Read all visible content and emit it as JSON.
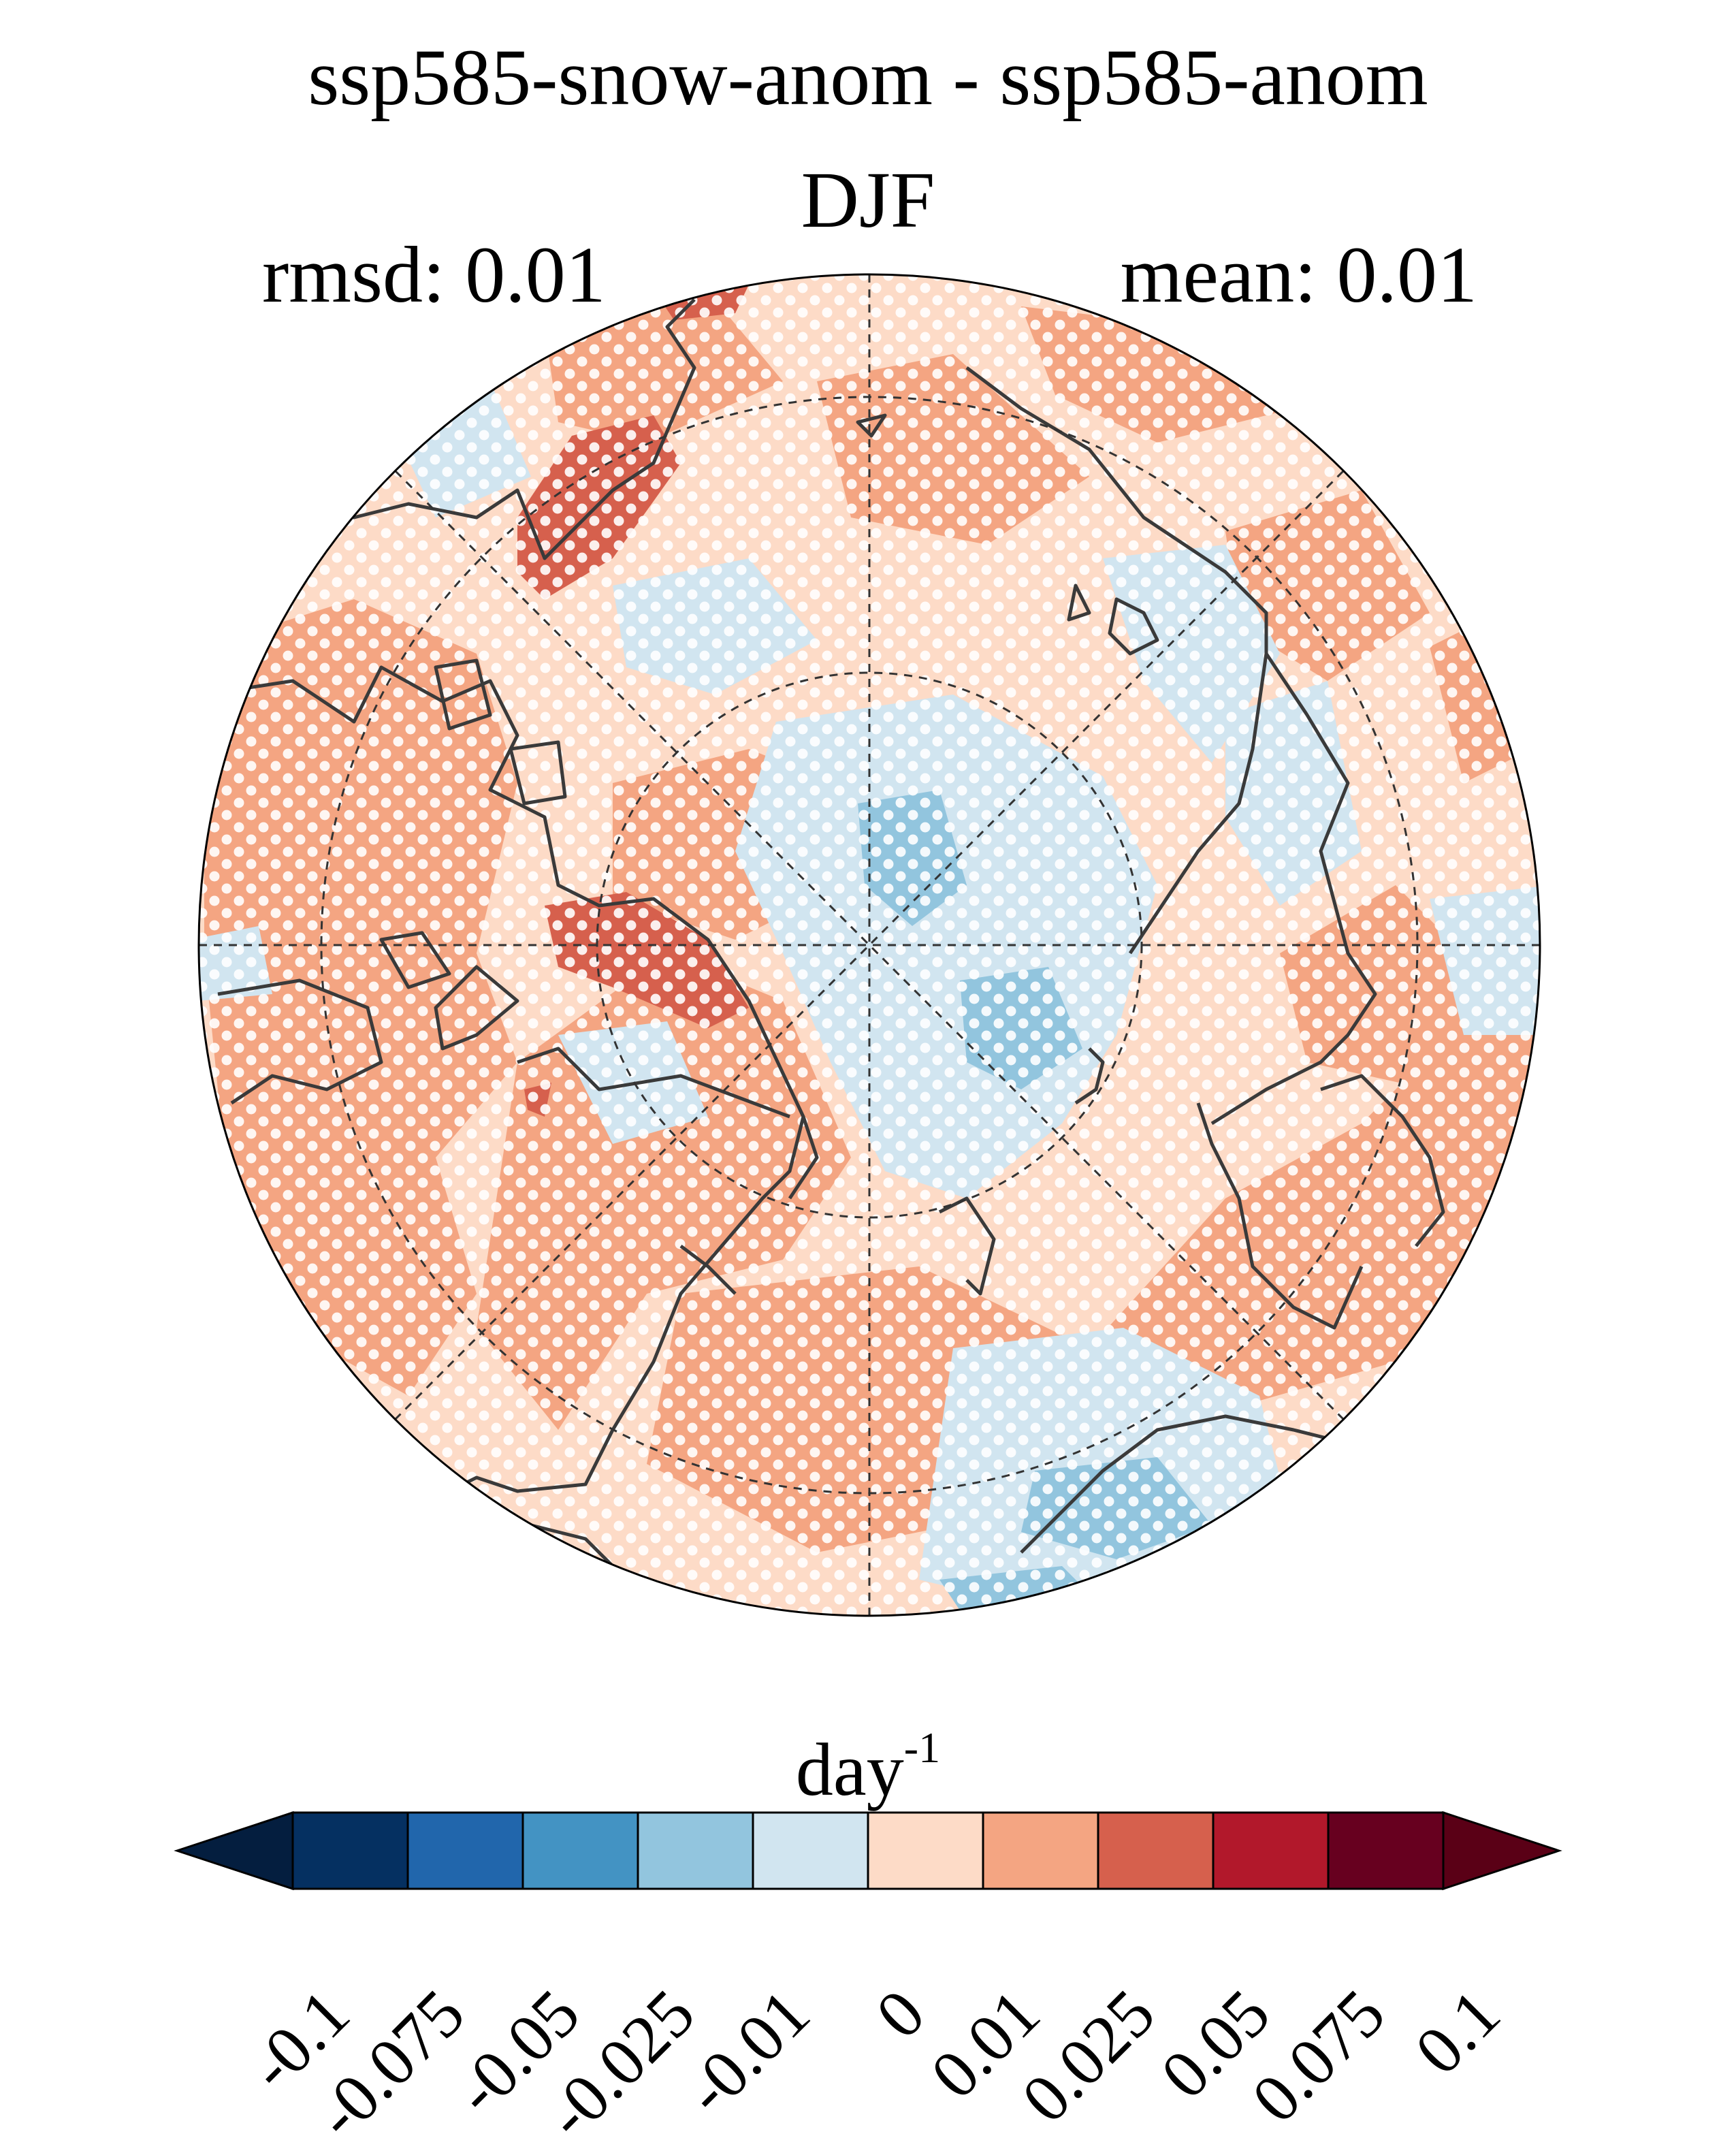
{
  "title": "ssp585-snow-anom - ssp585-anom",
  "season": "DJF",
  "rmsd_text": "rmsd: 0.01",
  "mean_text": "mean: 0.01",
  "colorbar": {
    "units_base": "day",
    "units_exp": "-1",
    "tick_labels": [
      "-0.1",
      "-0.075",
      "-0.05",
      "-0.025",
      "-0.01",
      "0",
      "0.01",
      "0.025",
      "0.05",
      "0.075",
      "0.1"
    ],
    "bins": [
      {
        "from": "-0.1",
        "to": "-0.075",
        "color": "#053061"
      },
      {
        "from": "-0.075",
        "to": "-0.05",
        "color": "#2166ac"
      },
      {
        "from": "-0.05",
        "to": "-0.025",
        "color": "#4393c3"
      },
      {
        "from": "-0.025",
        "to": "-0.01",
        "color": "#92c5de"
      },
      {
        "from": "-0.01",
        "to": "0",
        "color": "#d1e5f0"
      },
      {
        "from": "0",
        "to": "0.01",
        "color": "#fddbc7"
      },
      {
        "from": "0.01",
        "to": "0.025",
        "color": "#f4a582"
      },
      {
        "from": "0.025",
        "to": "0.05",
        "color": "#d6604d"
      },
      {
        "from": "0.05",
        "to": "0.075",
        "color": "#b2182b"
      },
      {
        "from": "0.075",
        "to": "0.1",
        "color": "#67001f"
      }
    ],
    "under_color": "#041e3f",
    "over_color": "#5a0016",
    "extend": "both"
  },
  "map": {
    "projection": "north polar stereographic",
    "background_color": "#fddbc7",
    "significance_stippling": true,
    "stipple_color": "#ffffff",
    "coastline_color": "#3a3a3a",
    "graticule": "dashed"
  }
}
